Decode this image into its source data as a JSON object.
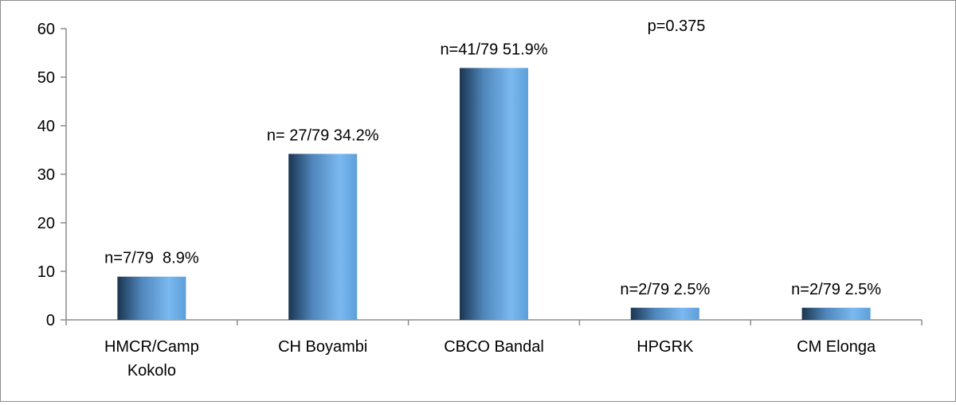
{
  "chart_data": {
    "type": "bar",
    "title": "",
    "xlabel": "",
    "ylabel": "",
    "annotation": "p=0.375",
    "categories": [
      "HMCR/Camp Kokolo",
      "CH Boyambi",
      "CBCO Bandal",
      "HPGRK",
      "CM Elonga"
    ],
    "values": [
      8.9,
      34.2,
      51.9,
      2.5,
      2.5
    ],
    "data_labels": [
      "n=7/79  8.9%",
      "n= 27/79 34.2%",
      "n=41/79 51.9%",
      "n=2/79 2.5%",
      "n=2/79 2.5%"
    ],
    "ylim": [
      0,
      60
    ],
    "yticks": [
      0,
      10,
      20,
      30,
      40,
      50,
      60
    ],
    "grid": false,
    "legend": "none",
    "colors": {
      "bar_dark": "#1b3550",
      "bar_light": "#7ab9f0",
      "axis": "#8c8c8c"
    }
  }
}
